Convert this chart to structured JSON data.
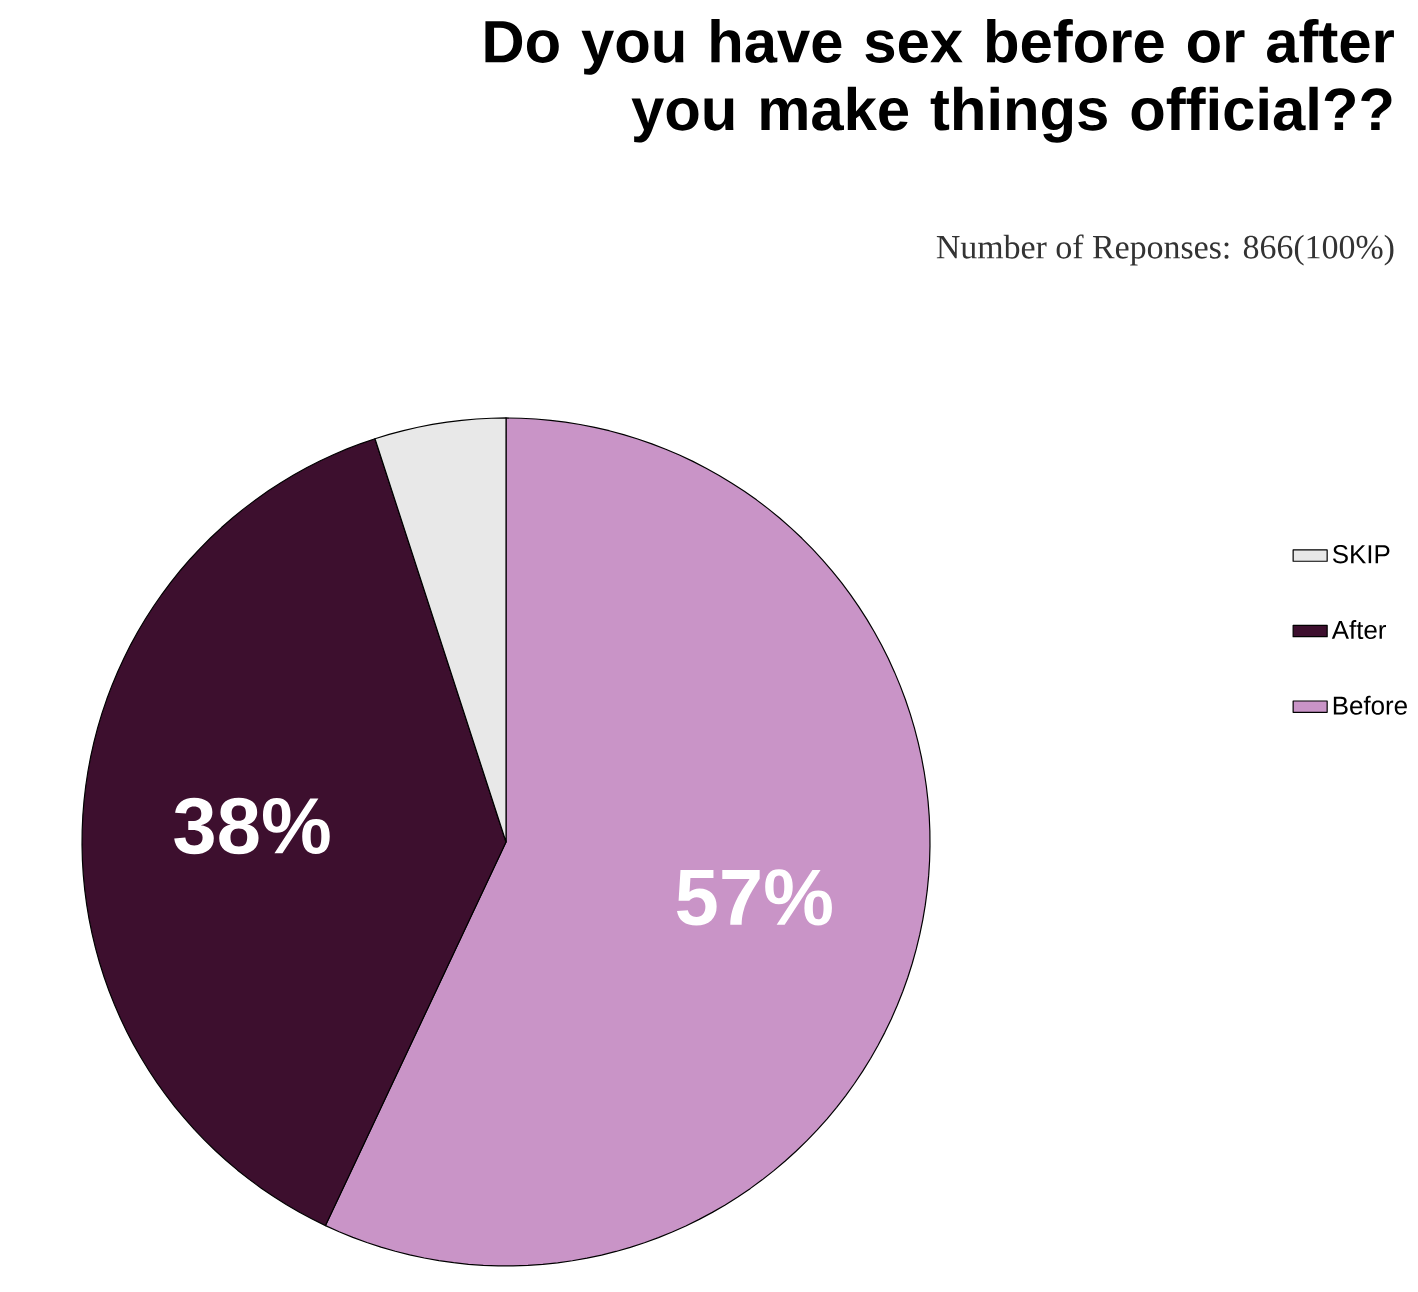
{
  "chart_data": {
    "type": "pie",
    "title": "Do you have sex before or after you make things official??",
    "subtitle": "Number of Reponses: 866(100%)",
    "categories": [
      "SKIP",
      "After",
      "Before"
    ],
    "values": [
      5,
      38,
      57
    ],
    "colors": [
      "#e8e8e8",
      "#3d0f2e",
      "#c994c7"
    ],
    "value_labels": [
      null,
      "38%",
      "57%"
    ],
    "legend": "right"
  }
}
